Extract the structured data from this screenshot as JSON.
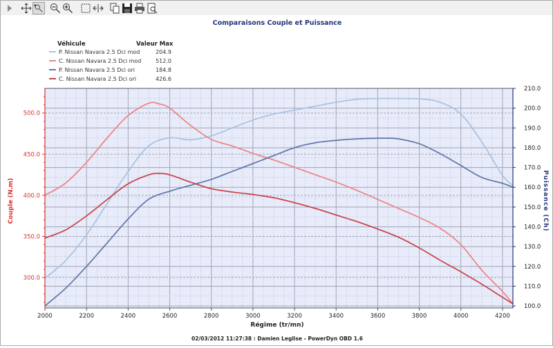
{
  "toolbar": {
    "tools": [
      {
        "name": "play-icon"
      },
      {
        "name": "pan-icon"
      },
      {
        "name": "pointer-zoom-icon"
      },
      {
        "name": "zoom-out-icon"
      },
      {
        "name": "zoom-in-icon"
      },
      {
        "name": "select-rect-icon"
      },
      {
        "name": "fit-width-icon"
      },
      {
        "name": "copy-icon"
      },
      {
        "name": "save-icon"
      },
      {
        "name": "print-icon"
      },
      {
        "name": "print-preview-icon"
      }
    ]
  },
  "footer": "02/03/2012 11:27:38 : Damien Leglise - PowerDyn OBD 1.6",
  "colors": {
    "plot_background": "#e8ecfa",
    "grid": "#9fa3b3",
    "left_axis": "#d9312f",
    "right_axis": "#23357a",
    "title": "#24357c"
  },
  "chart_data": {
    "type": "line",
    "title": "Comparaisons Couple et Puissance",
    "xlabel": "Régime (tr/mn)",
    "ylabel": "Couple (N.m)",
    "y2label": "Puissance (Ch)",
    "xlim": [
      2000,
      4250
    ],
    "ylim": [
      263,
      530
    ],
    "y2lim": [
      99,
      210
    ],
    "x_ticks": [
      "2000",
      "2200",
      "2400",
      "2600",
      "2800",
      "3000",
      "3200",
      "3400",
      "3600",
      "3800",
      "4000",
      "4200"
    ],
    "y_ticks": [
      "300.0",
      "350.0",
      "400.0",
      "450.0",
      "500.0"
    ],
    "y2_ticks": [
      "100.0",
      "110.0",
      "120.0",
      "130.0",
      "140.0",
      "150.0",
      "160.0",
      "170.0",
      "180.0",
      "190.0",
      "200.0",
      "210.0"
    ],
    "grid": true,
    "legend": {
      "placement": "top-left",
      "header_name": "Véhicule",
      "header_value": "Valeur Max",
      "entries": [
        {
          "name": "P. Nissan Navara 2.5 Dci mod",
          "value": "204.9"
        },
        {
          "name": "C. Nissan Navara 2.5 Dci mod",
          "value": "512.0"
        },
        {
          "name": "P. Nissan Navara 2.5 Dci ori",
          "value": "184.8"
        },
        {
          "name": "C. Nissan Navara 2.5 Dci ori",
          "value": "426.6"
        }
      ]
    },
    "series": [
      {
        "axis": "right",
        "color": "#a7c4e4",
        "x": [
          2000,
          2100,
          2200,
          2300,
          2400,
          2500,
          2600,
          2700,
          2800,
          2900,
          3000,
          3100,
          3200,
          3300,
          3400,
          3500,
          3600,
          3700,
          3800,
          3900,
          4000,
          4100,
          4200,
          4250
        ],
        "y": [
          114,
          123,
          136,
          152,
          168,
          181,
          185,
          184,
          186,
          190,
          194,
          197,
          199,
          201,
          203,
          204.5,
          204.9,
          204.9,
          204.7,
          203,
          197,
          183,
          166,
          161
        ]
      },
      {
        "axis": "left",
        "color": "#ee8585",
        "x": [
          2000,
          2100,
          2200,
          2300,
          2400,
          2500,
          2550,
          2600,
          2700,
          2800,
          2900,
          3000,
          3100,
          3200,
          3300,
          3400,
          3500,
          3600,
          3700,
          3800,
          3900,
          4000,
          4100,
          4200,
          4250
        ],
        "y": [
          400,
          415,
          440,
          470,
          497,
          512,
          511,
          506,
          485,
          468,
          460,
          451,
          443,
          434,
          425,
          416,
          406,
          395,
          384,
          373,
          360,
          340,
          309,
          283,
          268
        ]
      },
      {
        "axis": "right",
        "color": "#6179a8",
        "x": [
          2000,
          2100,
          2200,
          2300,
          2400,
          2500,
          2600,
          2700,
          2800,
          2900,
          3000,
          3100,
          3200,
          3300,
          3400,
          3500,
          3600,
          3650,
          3700,
          3800,
          3900,
          4000,
          4100,
          4200,
          4250
        ],
        "y": [
          100,
          109,
          120,
          132,
          144,
          154,
          158,
          161,
          164,
          168,
          172,
          176,
          180,
          182.5,
          183.7,
          184.5,
          184.8,
          184.8,
          184.5,
          182,
          177,
          171,
          165,
          162,
          160
        ]
      },
      {
        "axis": "left",
        "color": "#c9454d",
        "x": [
          2000,
          2100,
          2200,
          2300,
          2400,
          2500,
          2550,
          2600,
          2700,
          2800,
          2900,
          3000,
          3100,
          3200,
          3300,
          3400,
          3500,
          3600,
          3700,
          3800,
          3900,
          4000,
          4100,
          4200,
          4250
        ],
        "y": [
          348,
          358,
          375,
          395,
          414,
          425,
          426.6,
          425,
          416,
          408,
          404,
          401,
          397,
          391,
          384,
          376,
          368,
          359,
          349,
          336,
          321,
          307,
          292,
          276,
          268
        ]
      }
    ]
  }
}
